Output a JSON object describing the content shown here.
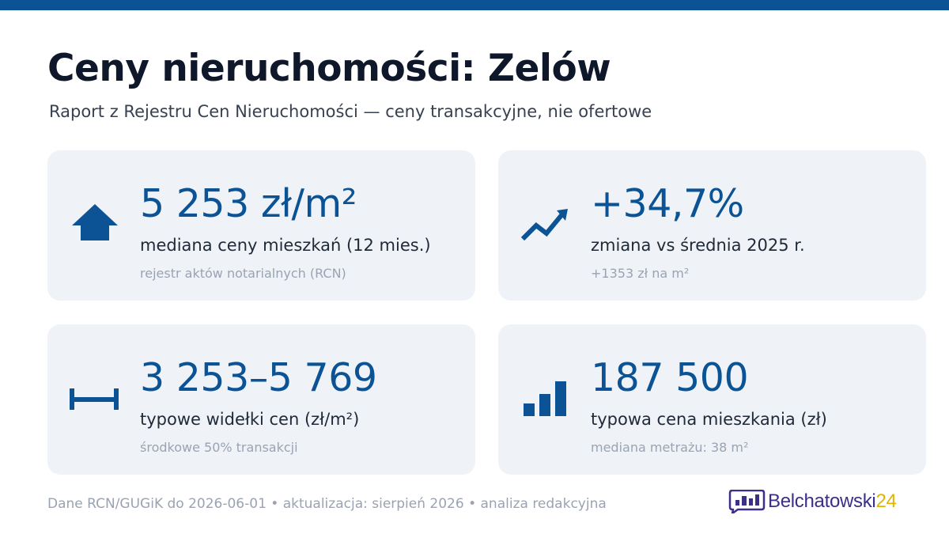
{
  "header": {
    "title": "Ceny nieruchomości: Zelów",
    "subtitle": "Raport z Rejestru Cen Nieruchomości — ceny transakcyjne, nie ofertowe"
  },
  "cards": [
    {
      "value": "5 253 zł/m²",
      "label": "mediana ceny mieszkań (12 mies.)",
      "note": "rejestr aktów notarialnych (RCN)",
      "icon": "house-icon"
    },
    {
      "value": "+34,7%",
      "label": "zmiana vs średnia 2025 r.",
      "note": "+1353 zł na m²",
      "icon": "trend-up-icon"
    },
    {
      "value": "3 253–5 769",
      "label": "typowe widełki cen (zł/m²)",
      "note": "środkowe 50% transakcji",
      "icon": "range-icon"
    },
    {
      "value": "187 500",
      "label": "typowa cena mieszkania (zł)",
      "note": "mediana metrażu: 38 m²",
      "icon": "bar-chart-icon"
    }
  ],
  "footer": {
    "text": "Dane RCN/GUGiK do 2026-06-01 • aktualizacja: sierpień 2026 • analiza redakcyjna"
  },
  "logo": {
    "name": "Belchatowski",
    "number": "24"
  },
  "colors": {
    "accent": "#0b5394",
    "card_bg": "#eff3f8",
    "logo_primary": "#3b2f8a",
    "logo_secondary": "#e0b400"
  }
}
